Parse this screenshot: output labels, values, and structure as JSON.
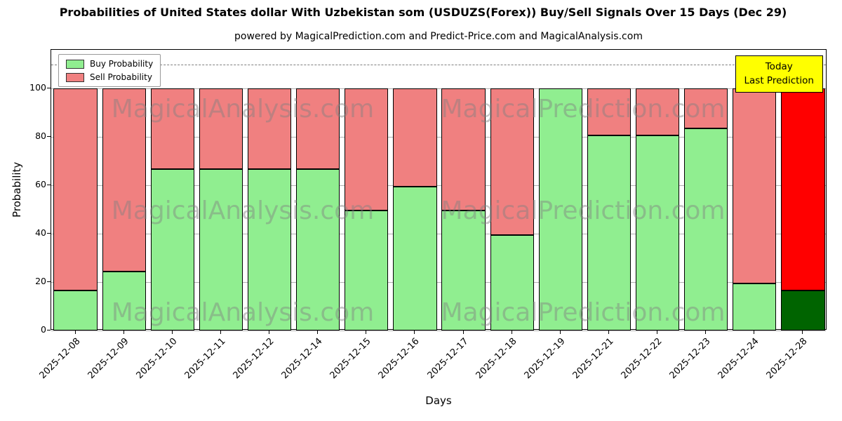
{
  "header": {
    "title": "Probabilities of United States dollar With Uzbekistan som (USDUZS(Forex)) Buy/Sell Signals Over 15 Days (Dec 29)",
    "subtitle": "powered by MagicalPrediction.com and Predict-Price.com and MagicalAnalysis.com"
  },
  "chart_data": {
    "type": "bar",
    "stacked": true,
    "title": "Probabilities of United States dollar With Uzbekistan som (USDUZS(Forex)) Buy/Sell Signals Over 15 Days (Dec 29)",
    "xlabel": "Days",
    "ylabel": "Probability",
    "categories": [
      "2025-12-08",
      "2025-12-09",
      "2025-12-10",
      "2025-12-11",
      "2025-12-12",
      "2025-12-14",
      "2025-12-15",
      "2025-12-16",
      "2025-12-17",
      "2025-12-18",
      "2025-12-19",
      "2025-12-21",
      "2025-12-22",
      "2025-12-23",
      "2025-12-24",
      "2025-12-28"
    ],
    "series": [
      {
        "name": "Buy Probability",
        "color": "#90EE90",
        "values": [
          16.67,
          24.5,
          66.67,
          66.67,
          66.67,
          66.67,
          49.5,
          59.5,
          49.5,
          39.5,
          100,
          80.5,
          80.5,
          83.5,
          19.5,
          16.67
        ]
      },
      {
        "name": "Sell Probability",
        "color": "#F08080",
        "values": [
          83.33,
          75.5,
          33.33,
          33.33,
          33.33,
          33.33,
          50.5,
          40.5,
          50.5,
          60.5,
          0,
          19.5,
          19.5,
          16.5,
          80.5,
          83.33
        ]
      }
    ],
    "today_bar": {
      "index": 15,
      "buy_color": "#006400",
      "sell_color": "#FF0000"
    },
    "yticks": [
      0,
      20,
      40,
      60,
      80,
      100
    ],
    "ylim": [
      0,
      116
    ],
    "dashed_line_y": 110,
    "grid": true,
    "legend": {
      "position": "upper-left"
    },
    "annotation": {
      "lines": [
        "Today",
        "Last Prediction"
      ],
      "bg": "#FFFF00"
    },
    "watermarks": [
      "MagicalAnalysis.com",
      "MagicalPrediction.com"
    ]
  }
}
